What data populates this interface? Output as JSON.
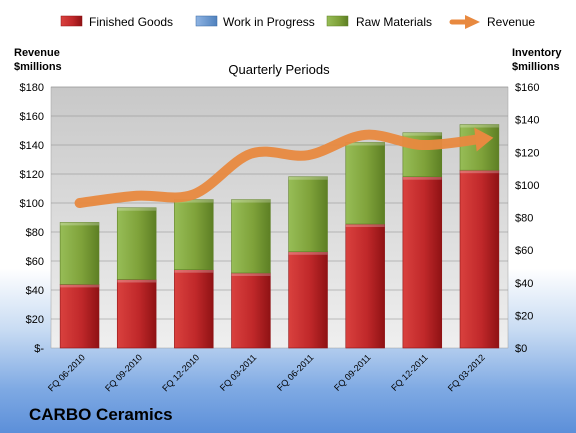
{
  "company": "CARBO Ceramics",
  "chart_data": {
    "type": "bar",
    "subtitle": "Quarterly Periods",
    "stacked": true,
    "categories": [
      "FQ 06-2010",
      "FQ 09-2010",
      "FQ 12-2010",
      "FQ 03-2011",
      "FQ 06-2011",
      "FQ 09-2011",
      "FQ 12-2011",
      "FQ 03-2012"
    ],
    "y_left": {
      "label_line1": "Revenue",
      "label_line2": "$millions",
      "ylim": [
        0,
        180
      ],
      "ticks": [
        0,
        20,
        40,
        60,
        80,
        100,
        120,
        140,
        160,
        180
      ],
      "tick_labels": [
        "$-",
        "$20",
        "$40",
        "$60",
        "$80",
        "$100",
        "$120",
        "$140",
        "$160",
        "$180"
      ]
    },
    "y_right": {
      "label_line1": "Inventory",
      "label_line2": "$millions",
      "ylim": [
        0,
        160
      ],
      "ticks": [
        0,
        20,
        40,
        60,
        80,
        100,
        120,
        140,
        160
      ],
      "tick_labels": [
        "$0",
        "$20",
        "$40",
        "$60",
        "$80",
        "$100",
        "$120",
        "$140",
        "$160"
      ]
    },
    "series": [
      {
        "name": "Finished Goods",
        "axis": "right",
        "color": "#c0282a",
        "values": [
          39,
          42,
          48,
          46,
          59,
          76,
          105,
          109
        ]
      },
      {
        "name": "Work in Progress",
        "axis": "right",
        "color": "#4f81bd",
        "values": [
          0,
          0,
          0,
          0,
          0,
          0,
          0,
          0
        ]
      },
      {
        "name": "Raw Materials",
        "axis": "right",
        "color": "#7fa23a",
        "values": [
          38,
          44,
          43,
          45,
          46,
          50,
          27,
          28
        ]
      },
      {
        "name": "Revenue",
        "axis": "left",
        "type": "line",
        "color": "#e8893f",
        "values": [
          100,
          105,
          106,
          134,
          133,
          147,
          140,
          144
        ]
      }
    ],
    "legend_position": "top",
    "grid": true
  }
}
